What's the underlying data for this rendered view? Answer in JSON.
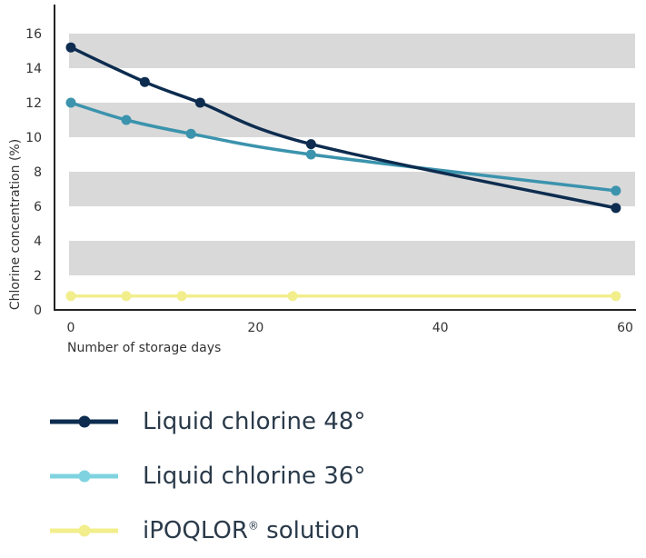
{
  "chart_data": {
    "type": "line",
    "xlabel": "Number of storage days",
    "ylabel": "Chlorine concentration (%)",
    "xlim": [
      0,
      60
    ],
    "ylim": [
      0,
      17
    ],
    "xticks": [
      0,
      20,
      40,
      60
    ],
    "yticks": [
      0,
      2,
      4,
      6,
      8,
      10,
      12,
      14,
      16
    ],
    "grid_bands": [
      [
        2,
        4
      ],
      [
        6,
        8
      ],
      [
        10,
        12
      ],
      [
        14,
        16
      ]
    ],
    "band_color": "#d9d9d9",
    "legend_position": "bottom",
    "series": [
      {
        "name": "Liquid chlorine 48°",
        "color": "#0d2c4f",
        "legend_dot_color": "#0d2c4f",
        "x": [
          0,
          8,
          14,
          26,
          59
        ],
        "y": [
          15.2,
          13.2,
          12.0,
          9.6,
          5.9
        ]
      },
      {
        "name": "Liquid chlorine 36°",
        "color": "#3b93ad",
        "legend_dot_color": "#7fd3e0",
        "x": [
          0,
          6,
          13,
          26,
          59
        ],
        "y": [
          12.0,
          11.0,
          10.2,
          9.0,
          6.9
        ]
      },
      {
        "name": "iPOQLOR",
        "name_suffix": " solution",
        "name_sup": "®",
        "color": "#f2ee8c",
        "legend_dot_color": "#f2ee8c",
        "x": [
          0,
          6,
          12,
          24,
          59
        ],
        "y": [
          0.8,
          0.8,
          0.8,
          0.8,
          0.8
        ]
      }
    ]
  },
  "legend": {
    "items": [
      {
        "label": "Liquid chlorine 48°"
      },
      {
        "label": "Liquid chlorine 36°"
      },
      {
        "label": "iPOQLOR",
        "sup": "®",
        "suffix": " solution"
      }
    ]
  }
}
